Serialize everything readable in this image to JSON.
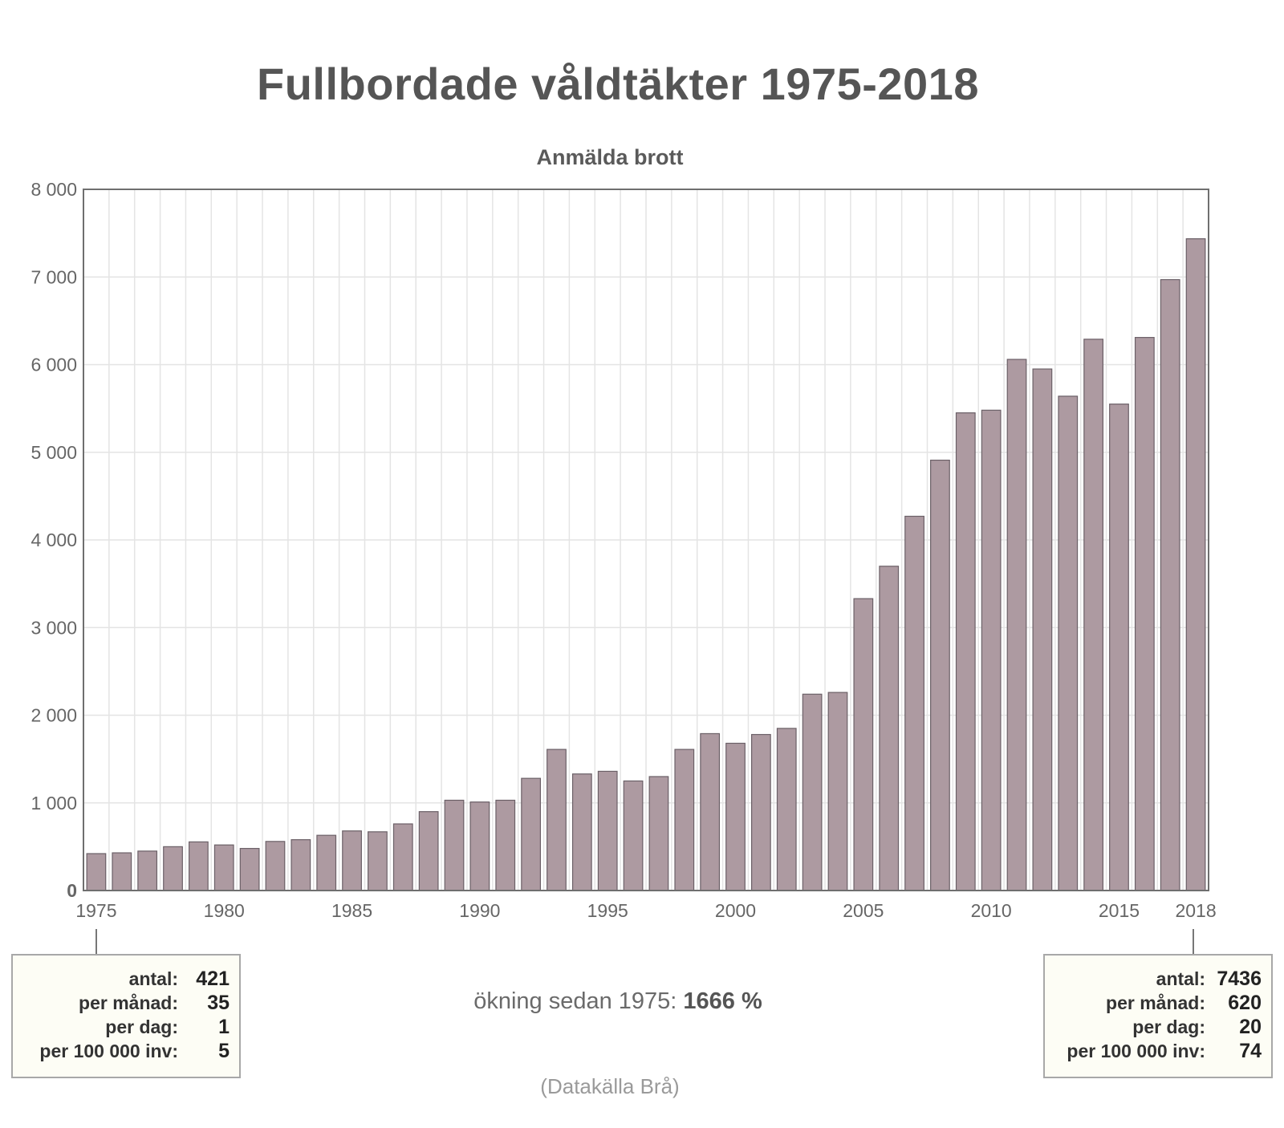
{
  "header": {
    "title": "Fullbordade våldtäkter 1975-2018",
    "subtitle": "Anmälda brott"
  },
  "chart_data": {
    "type": "bar",
    "title": "Fullbordade våldtäkter 1975-2018",
    "subtitle": "Anmälda brott",
    "xlabel": "",
    "ylabel": "",
    "ylim": [
      0,
      8000
    ],
    "yticks": [
      0,
      1000,
      2000,
      3000,
      4000,
      5000,
      6000,
      7000,
      8000
    ],
    "ytick_labels": [
      "0",
      "1 000",
      "2 000",
      "3 000",
      "4 000",
      "5 000",
      "6 000",
      "7 000",
      "8 000"
    ],
    "xtick_labels": [
      "1975",
      "1980",
      "1985",
      "1990",
      "1995",
      "2000",
      "2005",
      "2010",
      "2015",
      "2018"
    ],
    "grid": true,
    "bar_color": "#ad9aa1",
    "categories": [
      1975,
      1976,
      1977,
      1978,
      1979,
      1980,
      1981,
      1982,
      1983,
      1984,
      1985,
      1986,
      1987,
      1988,
      1989,
      1990,
      1991,
      1992,
      1993,
      1994,
      1995,
      1996,
      1997,
      1998,
      1999,
      2000,
      2001,
      2002,
      2003,
      2004,
      2005,
      2006,
      2007,
      2008,
      2009,
      2010,
      2011,
      2012,
      2013,
      2014,
      2015,
      2016,
      2017,
      2018
    ],
    "values": [
      421,
      430,
      450,
      500,
      555,
      520,
      480,
      560,
      580,
      630,
      680,
      670,
      760,
      900,
      1030,
      1010,
      1030,
      1280,
      1610,
      1330,
      1360,
      1250,
      1300,
      1610,
      1790,
      1680,
      1780,
      1850,
      2240,
      2260,
      3330,
      3700,
      4270,
      4910,
      5450,
      5480,
      6060,
      5950,
      5640,
      6290,
      5550,
      6310,
      6970,
      7436
    ]
  },
  "info_left": {
    "rows": [
      {
        "label": "antal:",
        "value": "421"
      },
      {
        "label": "per månad:",
        "value": "35"
      },
      {
        "label": "per dag:",
        "value": "1"
      },
      {
        "label": "per 100 000 inv:",
        "value": "5"
      }
    ]
  },
  "info_right": {
    "rows": [
      {
        "label": "antal:",
        "value": "7436"
      },
      {
        "label": "per månad:",
        "value": "620"
      },
      {
        "label": "per dag:",
        "value": "20"
      },
      {
        "label": "per 100 000 inv:",
        "value": "74"
      }
    ]
  },
  "increase": {
    "label": "ökning sedan 1975: ",
    "value": "1666 %"
  },
  "source": "(Datakälla Brå)"
}
